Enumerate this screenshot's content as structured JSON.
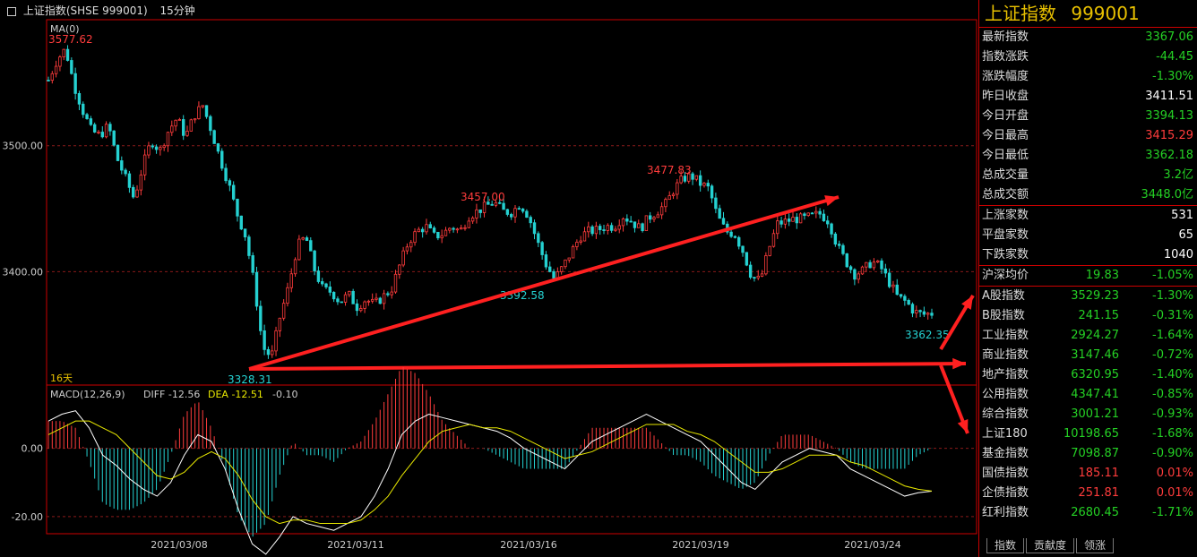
{
  "header": {
    "symbol_text": "上证指数(SHSE 999001)",
    "period": "15分钟",
    "ma_label": "MA(0)"
  },
  "colors": {
    "up": "#ff3c3c",
    "down": "#25d1d1",
    "text_up": "#ff3c3c",
    "text_down": "#25d125",
    "arrow": "#ff2020",
    "grid": "#8a1a1a"
  },
  "chart_data": [
    {
      "type": "candlestick",
      "title": "上证指数(SHSE 999001) 15分钟",
      "y_ticks": [
        3500.0,
        3400.0
      ],
      "ylim": [
        3310,
        3600
      ],
      "x_tick_labels": [
        "2021/03/08",
        "2021/03/11",
        "2021/03/16",
        "2021/03/19",
        "2021/03/24"
      ],
      "annotations": [
        {
          "text": "3577.62",
          "value": 3577.62,
          "color": "up"
        },
        {
          "text": "3457.00",
          "value": 3457.0,
          "color": "up"
        },
        {
          "text": "3477.83",
          "value": 3477.83,
          "color": "up"
        },
        {
          "text": "3392.58",
          "value": 3392.58,
          "color": "down"
        },
        {
          "text": "3328.31",
          "value": 3328.31,
          "color": "down"
        },
        {
          "text": "3362.35",
          "value": 3362.35,
          "color": "down"
        }
      ],
      "days_label": "16天",
      "close_path": [
        3552,
        3568,
        3577,
        3548,
        3528,
        3512,
        3508,
        3516,
        3490,
        3474,
        3458,
        3484,
        3504,
        3496,
        3512,
        3522,
        3507,
        3524,
        3532,
        3512,
        3490,
        3470,
        3446,
        3428,
        3390,
        3340,
        3332,
        3364,
        3388,
        3420,
        3428,
        3402,
        3386,
        3384,
        3376,
        3382,
        3372,
        3378,
        3374,
        3380,
        3386,
        3406,
        3424,
        3432,
        3436,
        3428,
        3430,
        3436,
        3432,
        3444,
        3448,
        3452,
        3455,
        3448,
        3447,
        3454,
        3444,
        3424,
        3406,
        3394,
        3404,
        3416,
        3428,
        3432,
        3433,
        3436,
        3436,
        3444,
        3440,
        3434,
        3443,
        3448,
        3454,
        3466,
        3474,
        3476,
        3470,
        3466,
        3444,
        3432,
        3430,
        3416,
        3396,
        3393,
        3418,
        3438,
        3440,
        3442,
        3442,
        3444,
        3446,
        3440,
        3420,
        3408,
        3398,
        3401,
        3408,
        3404,
        3392,
        3380,
        3376,
        3368,
        3366,
        3367
      ]
    },
    {
      "type": "line",
      "title": "MACD(12,26,9)",
      "legend": [
        {
          "name": "DIFF",
          "value": "-12.56"
        },
        {
          "name": "DEA",
          "value": "-12.51"
        },
        {
          "name": "",
          "value": "-0.10"
        }
      ],
      "y_ticks": [
        0.0,
        -20.0
      ],
      "ylim": [
        -25,
        18
      ],
      "diff": [
        8,
        10,
        11,
        6,
        -2,
        -5,
        -9,
        -12,
        -14,
        -10,
        -2,
        4,
        2,
        -6,
        -18,
        -28,
        -31,
        -26,
        -20,
        -22,
        -23,
        -24,
        -22,
        -20,
        -14,
        -6,
        4,
        8,
        10,
        9,
        8,
        7,
        6,
        5,
        3,
        0,
        -2,
        -4,
        -6,
        -2,
        2,
        4,
        6,
        8,
        10,
        8,
        6,
        4,
        2,
        -2,
        -6,
        -10,
        -12,
        -8,
        -4,
        -2,
        0,
        -1,
        -2,
        -6,
        -8,
        -10,
        -12,
        -14,
        -13,
        -12.56
      ],
      "dea": [
        4,
        6,
        8,
        8,
        6,
        4,
        0,
        -4,
        -8,
        -9,
        -7,
        -3,
        -1,
        -3,
        -8,
        -15,
        -20,
        -22,
        -21,
        -21,
        -22,
        -22,
        -22,
        -21,
        -18,
        -14,
        -8,
        -3,
        2,
        5,
        6,
        7,
        6,
        6,
        5,
        3,
        1,
        -1,
        -3,
        -2,
        -1,
        1,
        3,
        5,
        7,
        7,
        7,
        5,
        4,
        2,
        -1,
        -4,
        -7,
        -7,
        -6,
        -4,
        -2,
        -2,
        -2,
        -4,
        -5,
        -7,
        -9,
        -11,
        -12,
        -12.51
      ]
    }
  ],
  "panel": {
    "title": "上证指数",
    "code": "999001",
    "quote": [
      {
        "label": "最新指数",
        "value": "3367.06",
        "color": "down"
      },
      {
        "label": "指数涨跌",
        "value": "-44.45",
        "color": "down"
      },
      {
        "label": "涨跌幅度",
        "value": "-1.30%",
        "color": "down"
      },
      {
        "label": "昨日收盘",
        "value": "3411.51",
        "color": "white"
      },
      {
        "label": "今日开盘",
        "value": "3394.13",
        "color": "down"
      },
      {
        "label": "今日最高",
        "value": "3415.29",
        "color": "up"
      },
      {
        "label": "今日最低",
        "value": "3362.18",
        "color": "down"
      },
      {
        "label": "总成交量",
        "value": "3.2亿",
        "color": "down"
      },
      {
        "label": "总成交额",
        "value": "3448.0亿",
        "color": "down"
      }
    ],
    "breadth": [
      {
        "label": "上涨家数",
        "value": "531"
      },
      {
        "label": "平盘家数",
        "value": "65"
      },
      {
        "label": "下跌家数",
        "value": "1040"
      }
    ],
    "avg": {
      "label": "沪深均价",
      "price": "19.83",
      "change": "-1.05%"
    },
    "indices": [
      {
        "label": "A股指数",
        "price": "3529.23",
        "change": "-1.30%",
        "color": "down"
      },
      {
        "label": "B股指数",
        "price": "241.15",
        "change": "-0.31%",
        "color": "down"
      },
      {
        "label": "工业指数",
        "price": "2924.27",
        "change": "-1.64%",
        "color": "down"
      },
      {
        "label": "商业指数",
        "price": "3147.46",
        "change": "-0.72%",
        "color": "down"
      },
      {
        "label": "地产指数",
        "price": "6320.95",
        "change": "-1.40%",
        "color": "down"
      },
      {
        "label": "公用指数",
        "price": "4347.41",
        "change": "-0.85%",
        "color": "down"
      },
      {
        "label": "综合指数",
        "price": "3001.21",
        "change": "-0.93%",
        "color": "down"
      },
      {
        "label": "上证180",
        "price": "10198.65",
        "change": "-1.68%",
        "color": "down"
      },
      {
        "label": "基金指数",
        "price": "7098.87",
        "change": "-0.90%",
        "color": "down"
      },
      {
        "label": "国债指数",
        "price": "185.11",
        "change": "0.01%",
        "color": "up"
      },
      {
        "label": "企债指数",
        "price": "251.81",
        "change": "0.01%",
        "color": "up"
      },
      {
        "label": "红利指数",
        "price": "2680.45",
        "change": "-1.71%",
        "color": "down"
      }
    ],
    "tabs": [
      "指数",
      "贡献度",
      "领涨"
    ]
  }
}
